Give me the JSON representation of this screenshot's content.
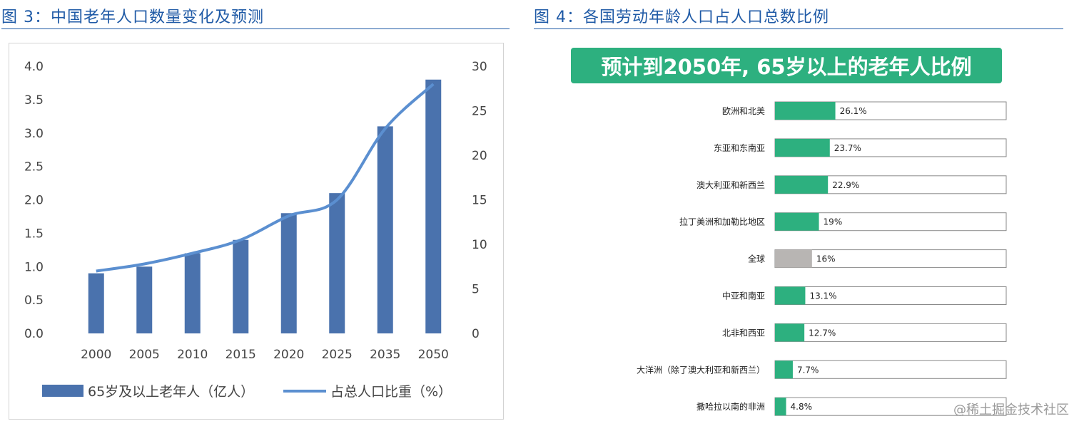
{
  "fig3": {
    "title": "图 3：中国老年人口数量变化及预测",
    "legend_bar": "65岁及以上老年人（亿人）",
    "legend_line": "占总人口比重（%）"
  },
  "fig4": {
    "title": "图 4：各国劳动年龄人口占人口总数比例",
    "banner": "预计到2050年, 65岁以上的老年人比例"
  },
  "watermark": "@稀土掘金技术社区",
  "chart_data": [
    {
      "type": "bar",
      "categories": [
        "2000",
        "2005",
        "2010",
        "2015",
        "2020",
        "2025",
        "2035",
        "2050"
      ],
      "series": [
        {
          "name": "65岁及以上老年人（亿人）",
          "type": "bar",
          "axis": "left",
          "values": [
            0.9,
            1.0,
            1.2,
            1.4,
            1.8,
            2.1,
            3.1,
            3.8
          ],
          "color": "#4a72ad"
        },
        {
          "name": "占总人口比重（%）",
          "type": "line",
          "axis": "right",
          "values": [
            7.0,
            7.8,
            9.0,
            10.5,
            13.2,
            15.0,
            23.0,
            28.0
          ],
          "color": "#5b8fd0"
        }
      ],
      "ylim_left": [
        0,
        4.0
      ],
      "yticks_left": [
        "0.0",
        "0.5",
        "1.0",
        "1.5",
        "2.0",
        "2.5",
        "3.0",
        "3.5",
        "4.0"
      ],
      "ylim_right": [
        0,
        30
      ],
      "yticks_right": [
        "0",
        "5",
        "10",
        "15",
        "20",
        "25",
        "30"
      ],
      "legend": "bottom"
    },
    {
      "type": "bar",
      "orientation": "horizontal",
      "categories": [
        "欧洲和北美",
        "东亚和东南亚",
        "澳大利亚和新西兰",
        "拉丁美洲和加勒比地区",
        "全球",
        "中亚和南亚",
        "北非和西亚",
        "大洋洲（除了澳大利亚和新西兰）",
        "撒哈拉以南的非洲"
      ],
      "values": [
        26.1,
        23.7,
        22.9,
        19,
        16,
        13.1,
        12.7,
        7.7,
        4.8
      ],
      "labels": [
        "26.1%",
        "23.7%",
        "22.9%",
        "19%",
        "16%",
        "13.1%",
        "12.7%",
        "7.7%",
        "4.8%"
      ],
      "highlight": {
        "全球": "#b8b5b3"
      },
      "bar_color": "#2db07f",
      "xlim": [
        0,
        100
      ]
    }
  ]
}
